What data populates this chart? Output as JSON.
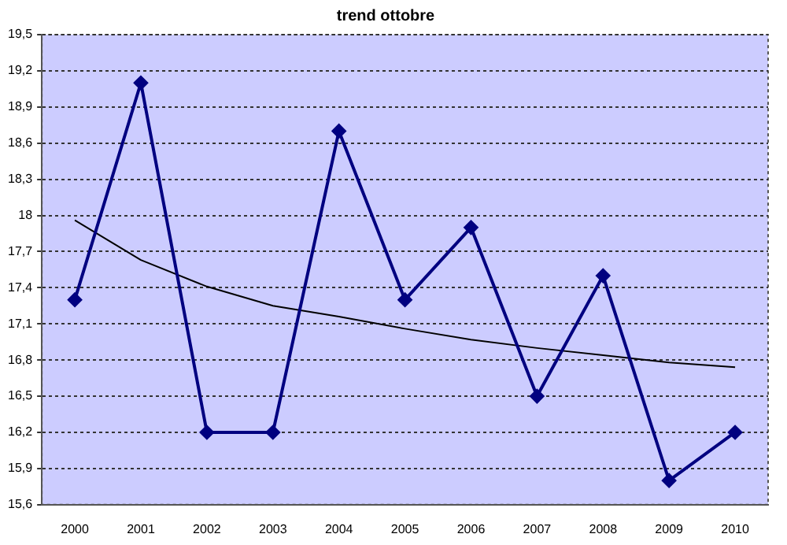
{
  "chart_data": {
    "type": "line",
    "title": "trend ottobre",
    "categories": [
      "2000",
      "2001",
      "2002",
      "2003",
      "2004",
      "2005",
      "2006",
      "2007",
      "2008",
      "2009",
      "2010"
    ],
    "series": [
      {
        "color": "#000080",
        "values": [
          17.3,
          19.1,
          16.2,
          16.2,
          18.7,
          17.3,
          17.9,
          16.5,
          17.5,
          15.8,
          16.2
        ]
      },
      {
        "color": "#000000",
        "marker": "none",
        "values": [
          17.96,
          17.63,
          17.41,
          17.25,
          17.16,
          17.06,
          16.97,
          16.9,
          16.84,
          16.78,
          16.74
        ]
      }
    ],
    "ylim": [
      15.6,
      19.5
    ],
    "yticks": [
      {
        "value": 15.6,
        "label": "15,6"
      },
      {
        "value": 15.9,
        "label": "15,9"
      },
      {
        "value": 16.2,
        "label": "16,2"
      },
      {
        "value": 16.5,
        "label": "16,5"
      },
      {
        "value": 16.8,
        "label": "16,8"
      },
      {
        "value": 17.1,
        "label": "17,1"
      },
      {
        "value": 17.4,
        "label": "17,4"
      },
      {
        "value": 17.7,
        "label": "17,7"
      },
      {
        "value": 18,
        "label": "18"
      },
      {
        "value": 18.3,
        "label": "18,3"
      },
      {
        "value": 18.6,
        "label": "18,6"
      },
      {
        "value": 18.9,
        "label": "18,9"
      },
      {
        "value": 19.2,
        "label": "19,2"
      },
      {
        "value": 19.5,
        "label": "19,5"
      }
    ],
    "grid": "y",
    "legend": false,
    "marker": "diamond",
    "line_style": "solid"
  }
}
